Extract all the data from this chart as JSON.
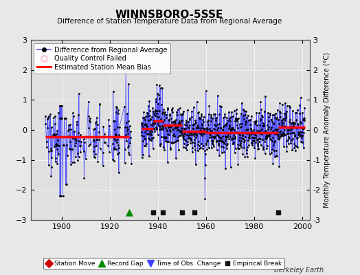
{
  "title": "WINNSBORO-5SSE",
  "subtitle": "Difference of Station Temperature Data from Regional Average",
  "ylabel_right": "Monthly Temperature Anomaly Difference (°C)",
  "xlim": [
    1887,
    2003
  ],
  "ylim": [
    -3,
    3
  ],
  "yticks": [
    -3,
    -2,
    -1,
    0,
    1,
    2,
    3
  ],
  "xticks": [
    1900,
    1920,
    1940,
    1960,
    1980,
    2000
  ],
  "bg_color": "#e8e8e8",
  "plot_bg_color": "#e0e0e0",
  "line_color": "#5555ff",
  "dot_color": "#000000",
  "bias_color": "#ff0000",
  "watermark": "Berkeley Earth",
  "record_gap_x": [
    1928
  ],
  "empirical_break_x": [
    1938,
    1942,
    1950,
    1955,
    1990
  ],
  "time_obs_x": [],
  "bias_segments": [
    {
      "x": [
        1893,
        1928
      ],
      "y": [
        -0.22,
        -0.22
      ]
    },
    {
      "x": [
        1933,
        1938
      ],
      "y": [
        0.05,
        0.05
      ]
    },
    {
      "x": [
        1938,
        1942
      ],
      "y": [
        0.3,
        0.3
      ]
    },
    {
      "x": [
        1942,
        1950
      ],
      "y": [
        0.15,
        0.15
      ]
    },
    {
      "x": [
        1950,
        1955
      ],
      "y": [
        -0.05,
        -0.05
      ]
    },
    {
      "x": [
        1955,
        1960
      ],
      "y": [
        -0.05,
        -0.05
      ]
    },
    {
      "x": [
        1960,
        1990
      ],
      "y": [
        -0.1,
        -0.1
      ]
    },
    {
      "x": [
        1990,
        2001
      ],
      "y": [
        0.1,
        0.1
      ]
    }
  ],
  "seed": 12345
}
